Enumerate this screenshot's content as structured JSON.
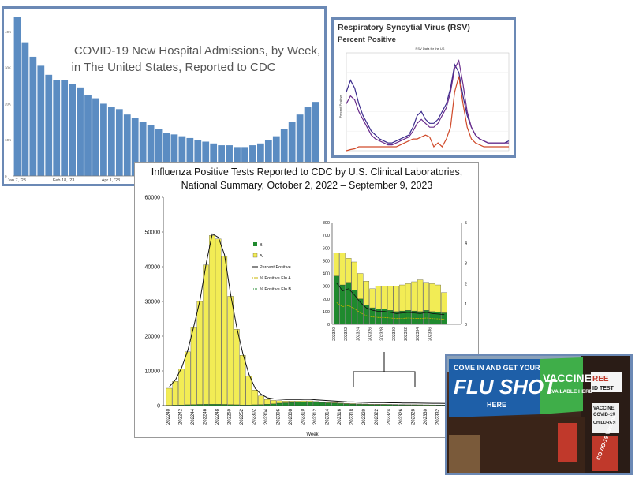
{
  "chart_data": [
    {
      "type": "bar",
      "title_line1": "COVID-19 New Hospital Admissions, by Week,",
      "title_line2": "in The United States, Reported to CDC",
      "x_ticks": [
        "Jan 7, '23",
        "Feb 18, '23",
        "Apr 1, '23"
      ],
      "y_ticks": [
        "0",
        "10K",
        "20K",
        "30K",
        "40K"
      ],
      "ylim": [
        0,
        45000
      ],
      "values": [
        44000,
        37000,
        33000,
        30500,
        28000,
        26500,
        26500,
        25500,
        24500,
        22500,
        21500,
        20000,
        19000,
        18500,
        17000,
        16000,
        15000,
        14000,
        13000,
        12000,
        11500,
        11000,
        10500,
        10000,
        9500,
        9000,
        8500,
        8500,
        8000,
        8000,
        8500,
        9000,
        10000,
        11000,
        13000,
        15000,
        17000,
        19000,
        20500
      ]
    },
    {
      "type": "line",
      "title": "Respiratory Syncytial Virus (RSV)",
      "subtitle": "Percent Positive",
      "inner_title": "RSV Data for the US",
      "ylabel": "Percent Positive",
      "ylim": [
        0,
        25
      ],
      "series": [
        {
          "color": "#3b2a8c",
          "values": [
            15,
            18,
            16,
            12,
            9,
            7,
            5,
            4,
            3,
            2.5,
            2,
            2,
            2.5,
            3,
            3.5,
            4,
            6,
            9,
            10,
            8,
            7,
            7,
            8,
            10,
            12,
            16,
            22,
            20,
            14,
            9,
            6,
            4,
            3,
            2.5,
            2,
            2,
            2,
            2,
            2,
            2.5
          ]
        },
        {
          "color": "#6a2c8c",
          "values": [
            12,
            14,
            13,
            10,
            8,
            6,
            4,
            3,
            2.5,
            2,
            1.5,
            1.5,
            2,
            2.5,
            3,
            3.5,
            5,
            7,
            8,
            7,
            6,
            6,
            7,
            9,
            11,
            15,
            21,
            23,
            17,
            10,
            6,
            4,
            3,
            2.5,
            2,
            2,
            2,
            2,
            2,
            2
          ]
        },
        {
          "color": "#d04a2a",
          "values": [
            0,
            0.3,
            0.5,
            1,
            1,
            1,
            1,
            1,
            1,
            1,
            1,
            1,
            1,
            1.5,
            2,
            2.5,
            3,
            3,
            3.5,
            4,
            3.5,
            1,
            2,
            1,
            3,
            6,
            15,
            19,
            12,
            6,
            3,
            2,
            1.5,
            1,
            1,
            1,
            1,
            1,
            1,
            1
          ]
        }
      ]
    },
    {
      "type": "bar",
      "title_line1": "Influenza Positive Tests Reported to CDC by U.S. Clinical Laboratories,",
      "title_line2": "National Summary, October 2, 2022 – September 9, 2023",
      "xlabel": "Week",
      "ylim": [
        0,
        60000
      ],
      "y_ticks": [
        "0",
        "10000",
        "20000",
        "30000",
        "40000",
        "50000",
        "60000"
      ],
      "x_ticks": [
        "202240",
        "202242",
        "202244",
        "202246",
        "202248",
        "202250",
        "202252",
        "202302",
        "202304",
        "202306",
        "202308",
        "202310",
        "202312",
        "202314",
        "202316",
        "202318",
        "202320",
        "202322",
        "202324",
        "202326",
        "202328",
        "202330",
        "202332",
        "202334"
      ],
      "legend": [
        "B",
        "A",
        "Percent Positive",
        "% Positive Flu A",
        "% Positive Flu B"
      ],
      "series": [
        {
          "name": "B",
          "color": "#1f8a2e",
          "values": [
            100,
            150,
            200,
            250,
            300,
            350,
            400,
            400,
            400,
            350,
            300,
            250,
            200,
            200,
            250,
            300,
            400,
            500,
            700,
            800,
            900,
            1000,
            1100,
            1100,
            1000,
            900,
            800,
            700,
            600,
            500,
            450,
            400,
            350,
            300,
            300,
            280,
            260,
            240,
            220,
            200,
            200,
            180,
            160,
            150,
            140,
            130,
            120,
            110,
            100,
            100
          ]
        },
        {
          "name": "A",
          "color": "#f2ec55",
          "values": [
            4900,
            6850,
            10300,
            15250,
            22200,
            29650,
            40100,
            48600,
            47600,
            42650,
            31200,
            21750,
            14300,
            8300,
            4250,
            2500,
            1400,
            1000,
            700,
            500,
            400,
            300,
            250,
            250,
            200,
            200,
            180,
            160,
            150,
            140,
            130,
            120,
            110,
            100,
            100,
            100,
            90,
            90,
            80,
            80,
            80,
            70,
            70,
            60,
            60,
            60,
            50,
            50,
            50,
            50
          ]
        }
      ],
      "inset": {
        "ylim": [
          0,
          800
        ],
        "y2lim": [
          0,
          5
        ],
        "y_ticks": [
          "0",
          "100",
          "200",
          "300",
          "400",
          "500",
          "600",
          "700",
          "800"
        ],
        "y2_ticks": [
          "0",
          "1",
          "2",
          "3",
          "4",
          "5"
        ],
        "x_ticks": [
          "202320",
          "202322",
          "202324",
          "202326",
          "202328",
          "202330",
          "202332",
          "202334",
          "202336"
        ],
        "b_values": [
          380,
          310,
          330,
          270,
          200,
          150,
          130,
          120,
          120,
          110,
          100,
          105,
          110,
          105,
          100,
          110,
          100,
          95,
          90
        ],
        "a_values": [
          180,
          250,
          190,
          220,
          200,
          190,
          150,
          180,
          180,
          190,
          200,
          205,
          210,
          230,
          250,
          220,
          220,
          215,
          160
        ]
      }
    }
  ],
  "photo": {
    "banner_line1": "COME IN AND GET YOUR",
    "banner_line2": "FLU SHOT",
    "banner_line3": "HERE",
    "banner_right1": "VACCINES",
    "banner_right2": "AVAILABLE HERE",
    "side_text": "REE",
    "side_text2": "ID TEST",
    "sign1": "VACCINE",
    "sign2": "COVID-19",
    "sign3": "CHILDREN",
    "sign4": "COVID-19 Vaccine",
    "colors": {
      "banner": "#1e5fa8",
      "green": "#3fae49"
    }
  }
}
